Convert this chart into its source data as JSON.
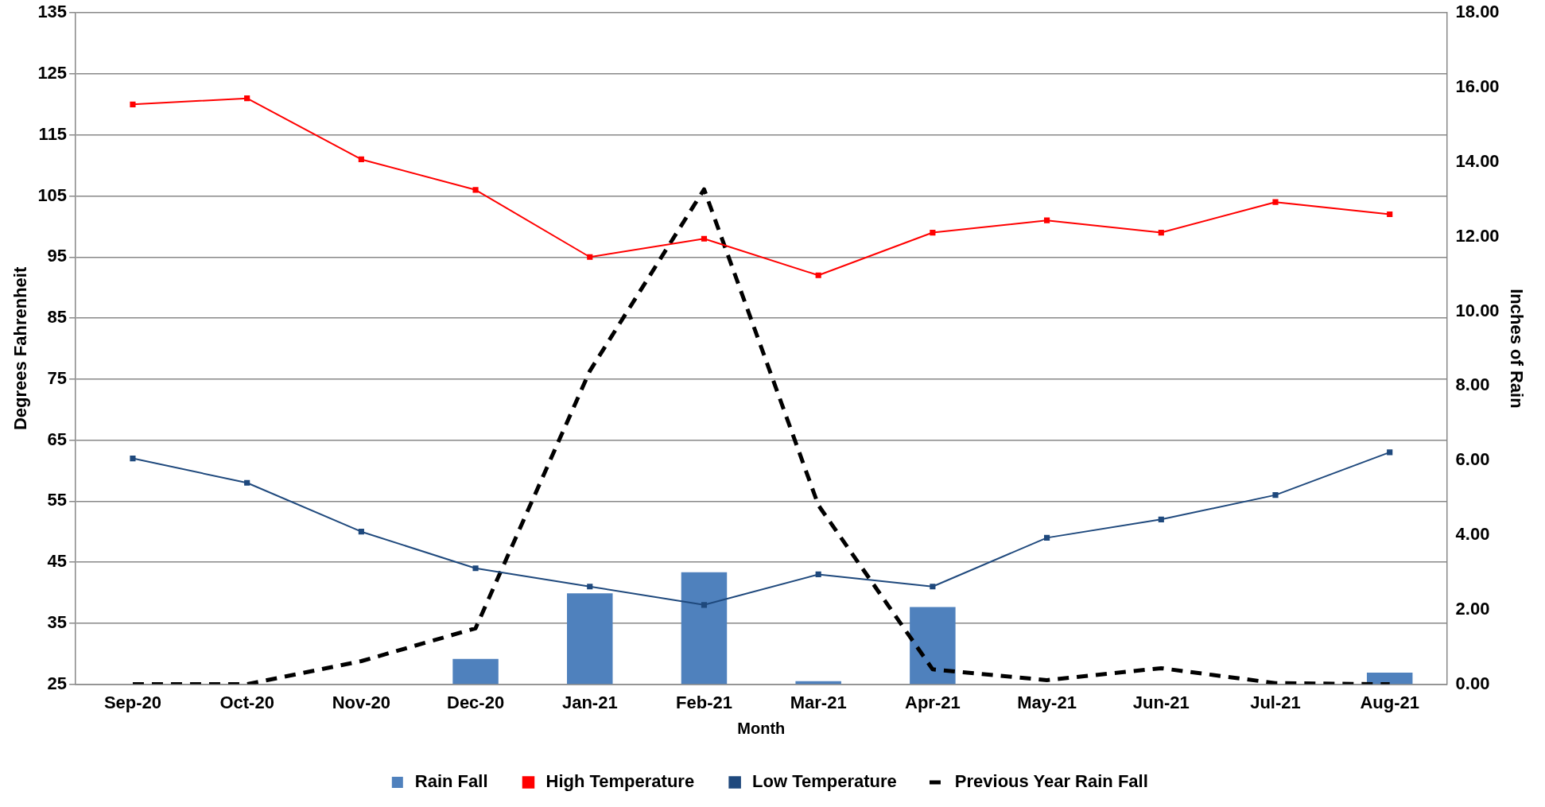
{
  "chart_data": {
    "type": "bar",
    "xlabel": "Month",
    "ylabel": "Degrees Fahrenheit",
    "y2label": "Inches of Rain",
    "categories": [
      "Sep-20",
      "Oct-20",
      "Nov-20",
      "Dec-20",
      "Jan-21",
      "Feb-21",
      "Mar-21",
      "Apr-21",
      "May-21",
      "Jun-21",
      "Jul-21",
      "Aug-21"
    ],
    "series": [
      {
        "name": "Rain Fall",
        "axis": "y2",
        "color": "#4f81bd",
        "values": [
          0,
          0,
          0,
          0.68,
          2.44,
          3.0,
          0.08,
          2.07,
          0,
          0,
          0,
          0.31
        ]
      },
      {
        "name": "High Temperature",
        "type": "line",
        "color": "#ff0000",
        "marker": "square",
        "values": [
          120,
          121,
          111,
          106,
          95,
          98,
          92,
          99,
          101,
          99,
          104,
          102
        ]
      },
      {
        "name": "Low Temperature",
        "type": "line",
        "color": "#1f497d",
        "marker": "square",
        "values": [
          62,
          58,
          50,
          44,
          41,
          38,
          43,
          41,
          49,
          52,
          56,
          63
        ]
      },
      {
        "name": "Previous Year Rain Fall",
        "type": "line",
        "axis": "y2",
        "color": "#000000",
        "marker": "none",
        "line_style": "dashed",
        "values": [
          0,
          0,
          0.62,
          1.5,
          8.4,
          13.27,
          4.8,
          0.4,
          0.11,
          0.43,
          0.03,
          0
        ]
      }
    ],
    "ylim": [
      25,
      135
    ],
    "yticks": [
      25,
      35,
      45,
      55,
      65,
      75,
      85,
      95,
      105,
      115,
      125,
      135
    ],
    "y2lim": [
      0,
      18
    ],
    "y2ticks": [
      {
        "value": 0,
        "label": "0.00"
      },
      {
        "value": 2,
        "label": "2.00"
      },
      {
        "value": 4,
        "label": "4.00"
      },
      {
        "value": 6,
        "label": "6.00"
      },
      {
        "value": 8,
        "label": "8.00"
      },
      {
        "value": 10,
        "label": "10.00"
      },
      {
        "value": 12,
        "label": "12.00"
      },
      {
        "value": 14,
        "label": "14.00"
      },
      {
        "value": 16,
        "label": "16.00"
      },
      {
        "value": 18,
        "label": "18.00"
      }
    ],
    "grid": "y",
    "legend": "bottom"
  }
}
